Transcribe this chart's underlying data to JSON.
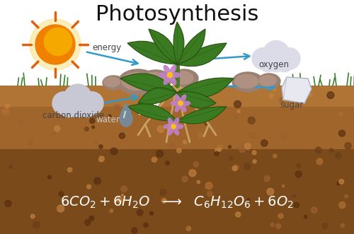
{
  "title": "Photosynthesis",
  "title_fontsize": 22,
  "title_color": "#111111",
  "bg_color": "#ffffff",
  "labels": {
    "energy": "energy",
    "carbon_dioxide": "carbon dioxide",
    "oxygen": "oxygen",
    "sugar": "sugar",
    "water": "water"
  },
  "label_fontsize": 8.5,
  "label_color": "#444444",
  "arrow_color": "#3399cc",
  "water_arrow_color": "#ffffff",
  "soil_color": "#a0652a",
  "soil_dark_color": "#7a4a1a",
  "soil_mid_color": "#8a5520",
  "sun_body_color": "#f5a800",
  "sun_glow_color": "#f9d040",
  "sun_ray_color": "#e06010",
  "cloud_color": "#d8d8e0",
  "oxygen_cloud_color": "#e8e8f0",
  "sugar_color": "#e0e0e8",
  "water_drop_color": "#8ab0cc",
  "equation_color": "#ffffff",
  "equation_fontsize": 14,
  "stem_color": "#4a7a28",
  "leaf_color": "#3a7a20",
  "leaf_edge_color": "#285010",
  "root_color": "#c8a060",
  "petal_color": "#c080c8",
  "center_color": "#f8c018",
  "rock_color": "#9a8070",
  "rock_highlight": "#b09080",
  "grass_color": "#3a8028"
}
